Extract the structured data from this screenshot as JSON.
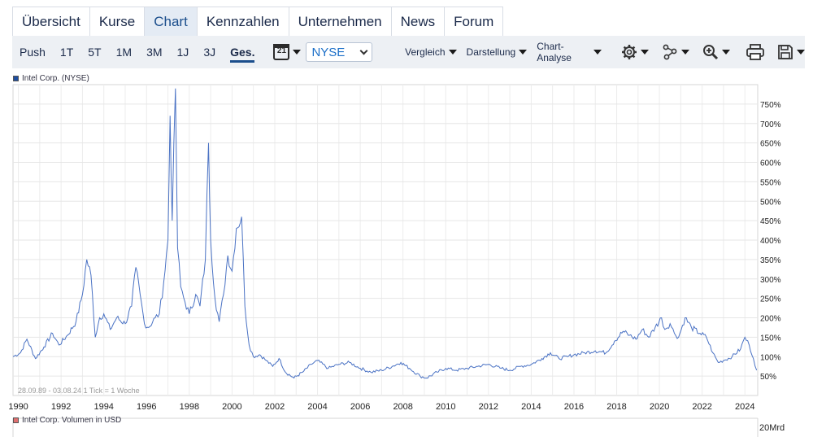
{
  "tabs": [
    {
      "label": "Übersicht",
      "active": false
    },
    {
      "label": "Kurse",
      "active": false
    },
    {
      "label": "Chart",
      "active": true
    },
    {
      "label": "Kennzahlen",
      "active": false
    },
    {
      "label": "Unternehmen",
      "active": false
    },
    {
      "label": "News",
      "active": false
    },
    {
      "label": "Forum",
      "active": false
    }
  ],
  "toolbar": {
    "ranges": [
      "Push",
      "1T",
      "5T",
      "1M",
      "3M",
      "1J",
      "3J",
      "Ges."
    ],
    "active_range": "Ges.",
    "calendar_day": "21",
    "exchange_select": "NYSE",
    "menus": [
      "Vergleich",
      "Darstellung",
      "Chart-Analyse"
    ],
    "icons": [
      "settings-gear-icon",
      "network-icon",
      "zoom-icon",
      "print-icon",
      "save-icon"
    ]
  },
  "legend": {
    "price_label": "Intel Corp. (NYSE)",
    "price_color": "#1f4fa0",
    "volume_label": "Intel Corp. Volumen in USD",
    "volume_color": "#e07070"
  },
  "range_info": "28.09.89 - 03.08.24   1 Tick = 1 Woche",
  "volume_axis_label": "20Mrd",
  "chart_data": {
    "type": "line",
    "series": [
      {
        "name": "Intel Corp. (NYSE)",
        "color": "#4a72c4"
      }
    ],
    "y_unit": "%",
    "ylim": [
      0,
      800
    ],
    "y_ticks": [
      "50%",
      "100%",
      "150%",
      "200%",
      "250%",
      "300%",
      "350%",
      "400%",
      "450%",
      "500%",
      "550%",
      "600%",
      "650%",
      "700%",
      "750%"
    ],
    "y_tick_values": [
      50,
      100,
      150,
      200,
      250,
      300,
      350,
      400,
      450,
      500,
      550,
      600,
      650,
      700,
      750
    ],
    "xlim": [
      1989.75,
      2024.6
    ],
    "x_ticks": [
      "1990",
      "1992",
      "1994",
      "1996",
      "1998",
      "2000",
      "2002",
      "2004",
      "2006",
      "2008",
      "2010",
      "2012",
      "2014",
      "2016",
      "2018",
      "2020",
      "2022",
      "2024"
    ],
    "points": [
      [
        1989.75,
        100
      ],
      [
        1990.1,
        110
      ],
      [
        1990.4,
        145
      ],
      [
        1990.8,
        95
      ],
      [
        1991.2,
        125
      ],
      [
        1991.6,
        160
      ],
      [
        1991.9,
        130
      ],
      [
        1992.3,
        155
      ],
      [
        1992.7,
        190
      ],
      [
        1993.0,
        260
      ],
      [
        1993.2,
        350
      ],
      [
        1993.4,
        310
      ],
      [
        1993.6,
        150
      ],
      [
        1993.8,
        200
      ],
      [
        1994.0,
        210
      ],
      [
        1994.3,
        170
      ],
      [
        1994.6,
        200
      ],
      [
        1995.0,
        185
      ],
      [
        1995.3,
        230
      ],
      [
        1995.5,
        330
      ],
      [
        1995.7,
        260
      ],
      [
        1995.9,
        185
      ],
      [
        1996.1,
        175
      ],
      [
        1996.4,
        200
      ],
      [
        1996.6,
        210
      ],
      [
        1996.8,
        290
      ],
      [
        1997.0,
        400
      ],
      [
        1997.1,
        720
      ],
      [
        1997.2,
        450
      ],
      [
        1997.35,
        790
      ],
      [
        1997.45,
        380
      ],
      [
        1997.6,
        280
      ],
      [
        1997.8,
        240
      ],
      [
        1998.0,
        210
      ],
      [
        1998.3,
        260
      ],
      [
        1998.5,
        230
      ],
      [
        1998.75,
        350
      ],
      [
        1998.9,
        650
      ],
      [
        1999.0,
        400
      ],
      [
        1999.2,
        250
      ],
      [
        1999.4,
        190
      ],
      [
        1999.6,
        260
      ],
      [
        1999.8,
        360
      ],
      [
        2000.0,
        320
      ],
      [
        2000.2,
        430
      ],
      [
        2000.45,
        460
      ],
      [
        2000.6,
        230
      ],
      [
        2000.8,
        130
      ],
      [
        2001.0,
        100
      ],
      [
        2001.3,
        105
      ],
      [
        2001.6,
        90
      ],
      [
        2001.9,
        75
      ],
      [
        2002.2,
        95
      ],
      [
        2002.5,
        60
      ],
      [
        2002.9,
        45
      ],
      [
        2003.3,
        60
      ],
      [
        2003.7,
        80
      ],
      [
        2004.0,
        90
      ],
      [
        2004.5,
        70
      ],
      [
        2005.0,
        80
      ],
      [
        2005.5,
        85
      ],
      [
        2006.0,
        70
      ],
      [
        2006.5,
        60
      ],
      [
        2007.0,
        65
      ],
      [
        2007.5,
        75
      ],
      [
        2007.9,
        85
      ],
      [
        2008.3,
        70
      ],
      [
        2008.8,
        50
      ],
      [
        2009.1,
        45
      ],
      [
        2009.6,
        60
      ],
      [
        2010.0,
        70
      ],
      [
        2010.5,
        65
      ],
      [
        2011.0,
        70
      ],
      [
        2011.5,
        75
      ],
      [
        2012.0,
        80
      ],
      [
        2012.6,
        70
      ],
      [
        2013.0,
        65
      ],
      [
        2013.5,
        75
      ],
      [
        2014.0,
        80
      ],
      [
        2014.5,
        95
      ],
      [
        2014.9,
        110
      ],
      [
        2015.3,
        95
      ],
      [
        2015.7,
        100
      ],
      [
        2016.0,
        105
      ],
      [
        2016.5,
        110
      ],
      [
        2017.0,
        115
      ],
      [
        2017.5,
        110
      ],
      [
        2017.9,
        140
      ],
      [
        2018.3,
        165
      ],
      [
        2018.6,
        155
      ],
      [
        2018.9,
        145
      ],
      [
        2019.2,
        170
      ],
      [
        2019.5,
        150
      ],
      [
        2019.8,
        175
      ],
      [
        2020.1,
        200
      ],
      [
        2020.25,
        170
      ],
      [
        2020.5,
        185
      ],
      [
        2020.7,
        160
      ],
      [
        2020.9,
        150
      ],
      [
        2021.2,
        200
      ],
      [
        2021.5,
        175
      ],
      [
        2021.9,
        160
      ],
      [
        2022.2,
        150
      ],
      [
        2022.5,
        110
      ],
      [
        2022.75,
        85
      ],
      [
        2023.0,
        90
      ],
      [
        2023.4,
        100
      ],
      [
        2023.8,
        120
      ],
      [
        2024.0,
        150
      ],
      [
        2024.2,
        130
      ],
      [
        2024.4,
        95
      ],
      [
        2024.55,
        65
      ]
    ]
  }
}
